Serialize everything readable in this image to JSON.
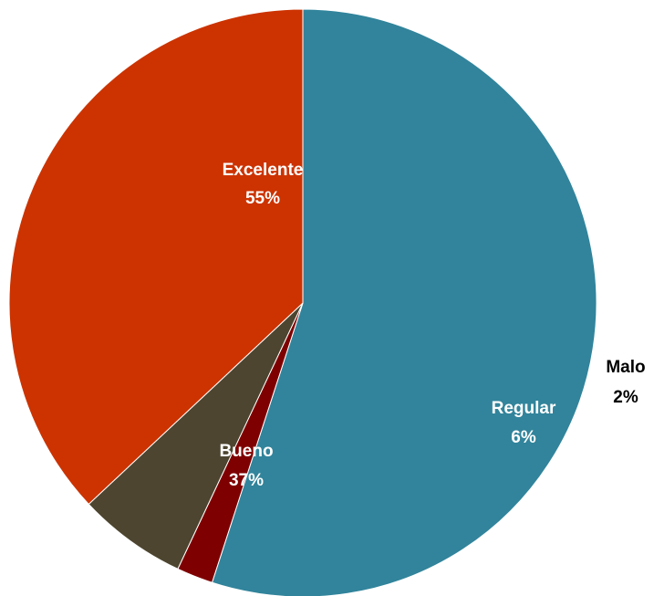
{
  "chart_data": {
    "type": "pie",
    "title": "",
    "slices": [
      {
        "label": "Excelente",
        "value": 55,
        "display": "55%",
        "color": "#31849B",
        "label_color": "#FFFFFF",
        "label_position": "inside"
      },
      {
        "label": "Malo",
        "value": 2,
        "display": "2%",
        "color": "#7F0000",
        "label_color": "#000000",
        "label_position": "outside"
      },
      {
        "label": "Regular",
        "value": 6,
        "display": "6%",
        "color": "#4D452F",
        "label_color": "#FFFFFF",
        "label_position": "inside"
      },
      {
        "label": "Bueno",
        "value": 37,
        "display": "37%",
        "color": "#CC3300",
        "label_color": "#FFFFFF",
        "label_position": "inside"
      }
    ],
    "start_angle_deg": 90,
    "direction": "clockwise",
    "legend": "none"
  }
}
